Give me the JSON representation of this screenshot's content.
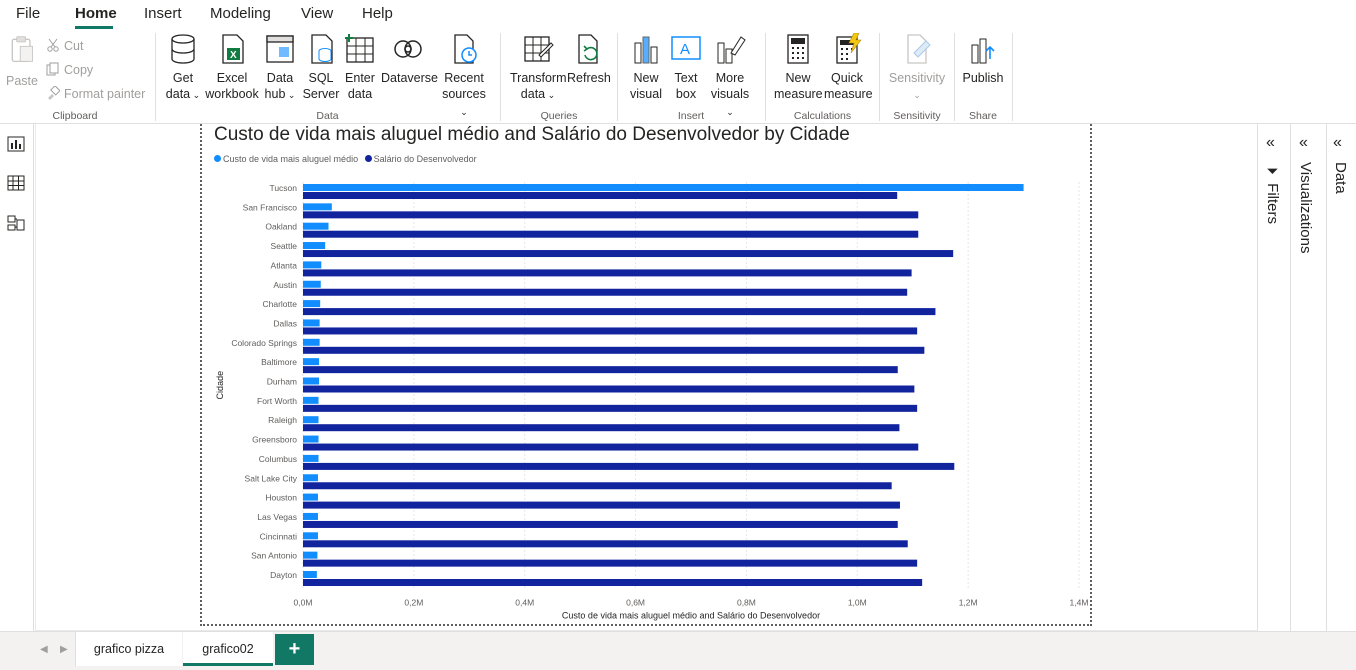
{
  "menu": {
    "items": [
      "File",
      "Home",
      "Insert",
      "Modeling",
      "View",
      "Help"
    ],
    "active": "Home"
  },
  "ribbon": {
    "clipboard": {
      "paste": "Paste",
      "cut": "Cut",
      "copy": "Copy",
      "format_painter": "Format painter",
      "label": "Clipboard"
    },
    "data": {
      "get_data": [
        "Get",
        "data"
      ],
      "excel": [
        "Excel",
        "workbook"
      ],
      "data_hub": [
        "Data",
        "hub"
      ],
      "sql": [
        "SQL",
        "Server"
      ],
      "enter_data": [
        "Enter",
        "data"
      ],
      "dataverse": "Dataverse",
      "recent": [
        "Recent",
        "sources"
      ],
      "label": "Data"
    },
    "queries": {
      "transform": [
        "Transform",
        "data"
      ],
      "refresh": "Refresh",
      "label": "Queries"
    },
    "insert": {
      "new_visual": [
        "New",
        "visual"
      ],
      "text_box": [
        "Text",
        "box"
      ],
      "more_visuals": [
        "More",
        "visuals"
      ],
      "label": "Insert"
    },
    "calculations": {
      "new_measure": [
        "New",
        "measure"
      ],
      "quick_measure": [
        "Quick",
        "measure"
      ],
      "label": "Calculations"
    },
    "sensitivity": {
      "button": "Sensitivity",
      "label": "Sensitivity"
    },
    "share": {
      "publish": "Publish",
      "label": "Share"
    }
  },
  "panes": {
    "filters": "Filters",
    "visualizations": "Visualizations",
    "data": "Data"
  },
  "tabs": {
    "pages": [
      "grafico pizza",
      "grafico02"
    ],
    "active": "grafico02",
    "add": "+"
  },
  "colors": {
    "accent": "#117865",
    "series1": "#118DFF",
    "series2": "#12239E"
  },
  "chart_data": {
    "type": "bar",
    "orientation": "horizontal",
    "title": "Custo de vida mais aluguel médio and Salário do Desenvolvedor by Cidade",
    "xlabel": "Custo de vida mais aluguel médio and Salário do Desenvolvedor",
    "ylabel": "Cidade",
    "xlim": [
      0,
      1400000
    ],
    "x_ticks": [
      "0,0M",
      "0,2M",
      "0,4M",
      "0,6M",
      "0,8M",
      "1,0M",
      "1,2M",
      "1,4M"
    ],
    "grid": true,
    "legend": "top-left",
    "categories": [
      "Tucson",
      "San Francisco",
      "Oakland",
      "Seattle",
      "Atlanta",
      "Austin",
      "Charlotte",
      "Dallas",
      "Colorado Springs",
      "Baltimore",
      "Durham",
      "Fort Worth",
      "Raleigh",
      "Greensboro",
      "Columbus",
      "Salt Lake City",
      "Houston",
      "Las Vegas",
      "Cincinnati",
      "San Antonio",
      "Dayton"
    ],
    "series": [
      {
        "name": "Custo de vida mais aluguel médio",
        "values": [
          1300000,
          52000,
          46000,
          40000,
          33000,
          32000,
          31000,
          30000,
          30000,
          29000,
          29000,
          28000,
          28000,
          28000,
          28000,
          27000,
          27000,
          27000,
          27000,
          26000,
          25000
        ]
      },
      {
        "name": "Salário do Desenvolvedor",
        "values": [
          1072000,
          1110000,
          1110000,
          1173000,
          1098000,
          1090000,
          1141000,
          1108000,
          1121000,
          1073000,
          1103000,
          1108000,
          1076000,
          1110000,
          1175000,
          1062000,
          1077000,
          1073000,
          1091000,
          1108000,
          1117000
        ]
      }
    ]
  }
}
